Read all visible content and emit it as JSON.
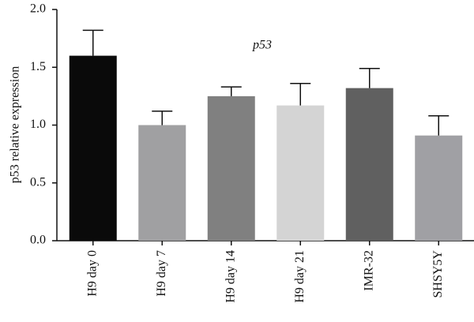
{
  "chart_data": {
    "type": "bar",
    "title": "p53",
    "y_label": "p53 relative expression",
    "categories": [
      "H9 day 0",
      "H9 day 7",
      "H9 day 14",
      "H9 day 21",
      "IMR-32",
      "SHSY5Y"
    ],
    "values": [
      1.6,
      1.0,
      1.25,
      1.17,
      1.32,
      0.91
    ],
    "errors": [
      0.22,
      0.12,
      0.08,
      0.19,
      0.17,
      0.17
    ],
    "colors": [
      "#0a0a0a",
      "#a0a0a2",
      "#808080",
      "#d4d4d4",
      "#606060",
      "#a0a0a4"
    ],
    "ylim": [
      0,
      2
    ],
    "yticks": [
      {
        "value": 0,
        "label": "0.0"
      },
      0.5,
      {
        "value": 1,
        "label": "1.0"
      },
      1.5,
      {
        "value": 2,
        "label": "2.0"
      }
    ]
  }
}
